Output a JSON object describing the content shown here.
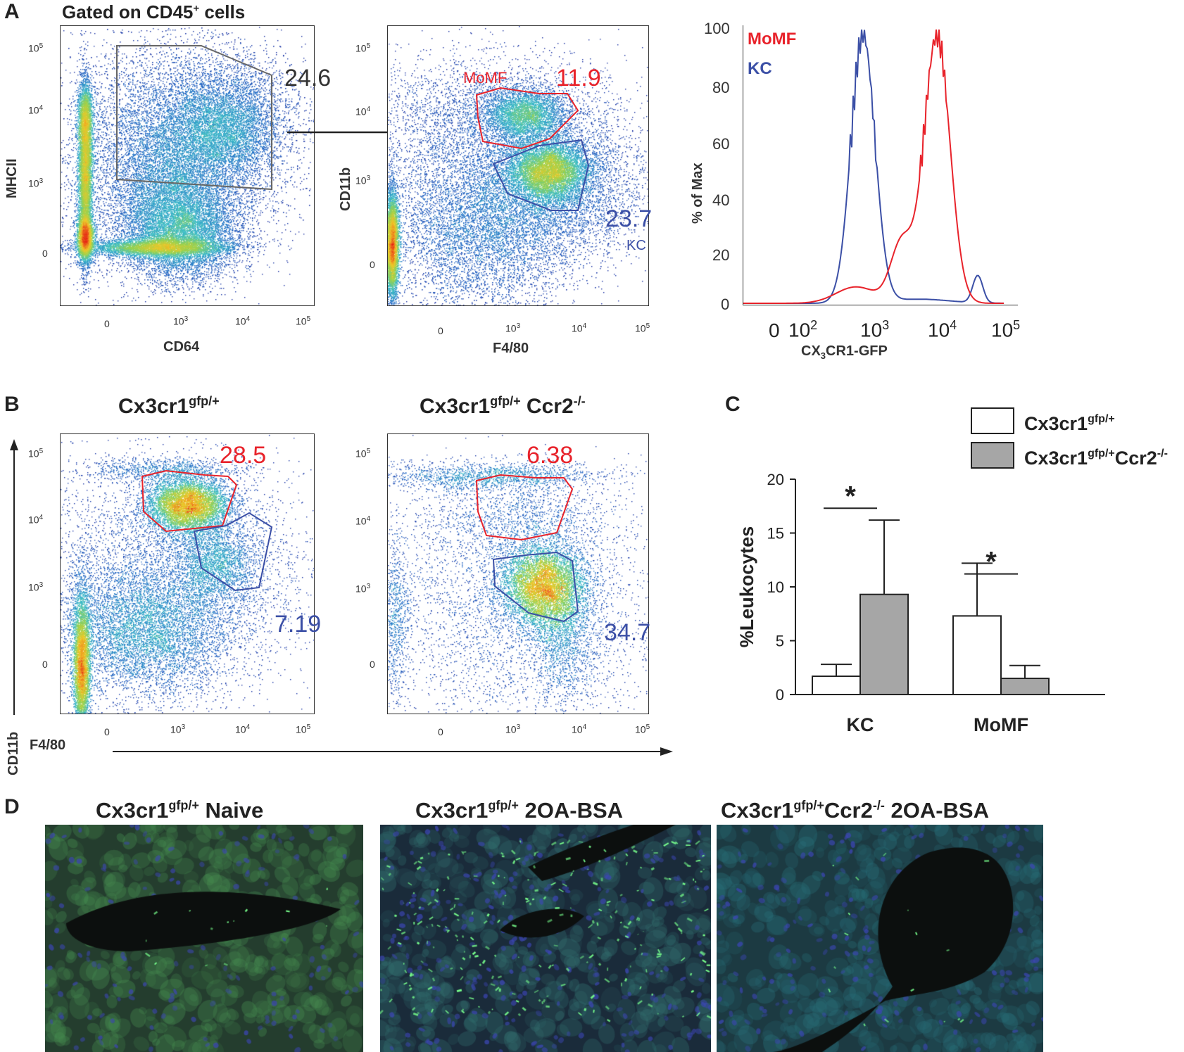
{
  "panel_letters": {
    "a": "A",
    "b": "B",
    "c": "C",
    "d": "D"
  },
  "panel_a": {
    "plot1": {
      "title": "Gated on CD45",
      "title_sup": "+",
      "title_after": " cells",
      "xlabel": "CD64",
      "ylabel": "MHCII",
      "gate_value": "24.6",
      "xticks": [
        "0",
        "10",
        "10",
        "10"
      ],
      "xtick_exps": [
        "",
        "3",
        "4",
        "5"
      ],
      "yticks": [
        "10",
        "10",
        "10",
        "0"
      ],
      "ytick_exps": [
        "5",
        "4",
        "3",
        ""
      ]
    },
    "plot2": {
      "xlabel": "F4/80",
      "ylabel": "CD11b",
      "gate_momf_label": "MoMF",
      "gate_momf_value": "11.9",
      "gate_kc_value": "23.7",
      "gate_kc_label": "KC",
      "xticks": [
        "0",
        "10",
        "10",
        "10"
      ],
      "xtick_exps": [
        "",
        "3",
        "4",
        "5"
      ],
      "yticks": [
        "10",
        "10",
        "10",
        "0"
      ],
      "ytick_exps": [
        "5",
        "4",
        "3",
        ""
      ]
    },
    "histogram": {
      "ylabel": "% of Max",
      "xlabel_pre": "CX",
      "xlabel_sub": "3",
      "xlabel_post": "CR1-GFP",
      "legend_momf": "MoMF",
      "legend_kc": "KC",
      "yticks": [
        "100",
        "80",
        "60",
        "40",
        "20",
        "0"
      ],
      "xticks": [
        "0",
        "10",
        "10",
        "10",
        "10"
      ],
      "xtick_exps": [
        "",
        "2",
        "3",
        "4",
        "5"
      ]
    }
  },
  "panel_b": {
    "plot1": {
      "title": "Cx3cr1",
      "title_sup": "gfp/+",
      "gate_red": "28.5",
      "gate_blue": "7.19",
      "xticks": [
        "0",
        "10",
        "10",
        "10"
      ],
      "xtick_exps": [
        "",
        "3",
        "4",
        "5"
      ],
      "yticks": [
        "10",
        "10",
        "10",
        "0"
      ],
      "ytick_exps": [
        "5",
        "4",
        "3",
        ""
      ]
    },
    "plot2": {
      "title": "Cx3cr1",
      "title_sup": "gfp/+",
      "title_mid": " Ccr2",
      "title_sup2": "-/-",
      "gate_red": "6.38",
      "gate_blue": "34.7",
      "xticks": [
        "0",
        "10",
        "10",
        "10"
      ],
      "xtick_exps": [
        "",
        "3",
        "4",
        "5"
      ],
      "yticks": [
        "10",
        "10",
        "10",
        "0"
      ],
      "ytick_exps": [
        "5",
        "4",
        "3",
        ""
      ]
    },
    "ylabel": "CD11b",
    "xlabel": "F4/80"
  },
  "chart_data": {
    "type": "bar",
    "title": "",
    "xlabel": "",
    "ylabel": "%Leukocytes",
    "ylim": [
      0,
      20
    ],
    "yticks": [
      "0",
      "5",
      "10",
      "15",
      "20"
    ],
    "categories": [
      "KC",
      "MoMF"
    ],
    "series": [
      {
        "name": "Cx3cr1",
        "name_sup": "gfp/+",
        "name_tail": "",
        "color": "#ffffff",
        "values": [
          1.7,
          7.3
        ],
        "errors": [
          1.1,
          4.9
        ]
      },
      {
        "name": "Cx3cr1",
        "name_sup": "gfp/+",
        "name_tail": "Ccr2",
        "name_sup2": "-/-",
        "color": "#a6a6a6",
        "values": [
          9.3,
          1.5
        ],
        "errors": [
          6.9,
          1.2
        ]
      }
    ],
    "significance": [
      "*",
      "*"
    ]
  },
  "panel_d": {
    "titles": [
      {
        "pre": "Cx3cr1",
        "sup": "gfp/+",
        "post": " Naive"
      },
      {
        "pre": "Cx3cr1",
        "sup": "gfp/+",
        "post": " 2OA-BSA"
      },
      {
        "pre": "Cx3cr1",
        "sup": "gfp/+",
        "post": "Ccr2",
        "sup2": "-/-",
        "post2": " 2OA-BSA"
      }
    ]
  },
  "colors": {
    "red": "#e8232b",
    "blue": "#3b4fa6",
    "gray_bar": "#a6a6a6"
  }
}
